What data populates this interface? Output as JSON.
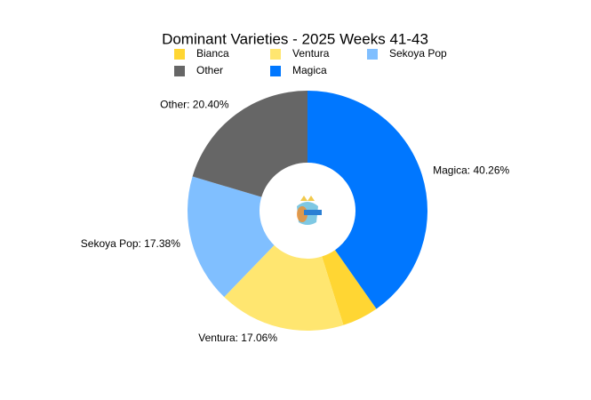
{
  "chart_data": {
    "type": "donut",
    "title": "Dominant Varieties - 2025 Weeks 41-43",
    "categories": [
      "Bianca",
      "Ventura",
      "Sekoya Pop",
      "Other",
      "Magica"
    ],
    "values": [
      4.9,
      17.06,
      17.38,
      20.4,
      40.26
    ],
    "value_labels": [
      null,
      "Ventura: 17.06%",
      "Sekoya Pop: 17.38%",
      "Other: 20.40%",
      "Magica: 40.26%"
    ],
    "colors": [
      "#ffd633",
      "#ffe670",
      "#80bfff",
      "#666666",
      "#0077ff"
    ],
    "legend": "top"
  }
}
